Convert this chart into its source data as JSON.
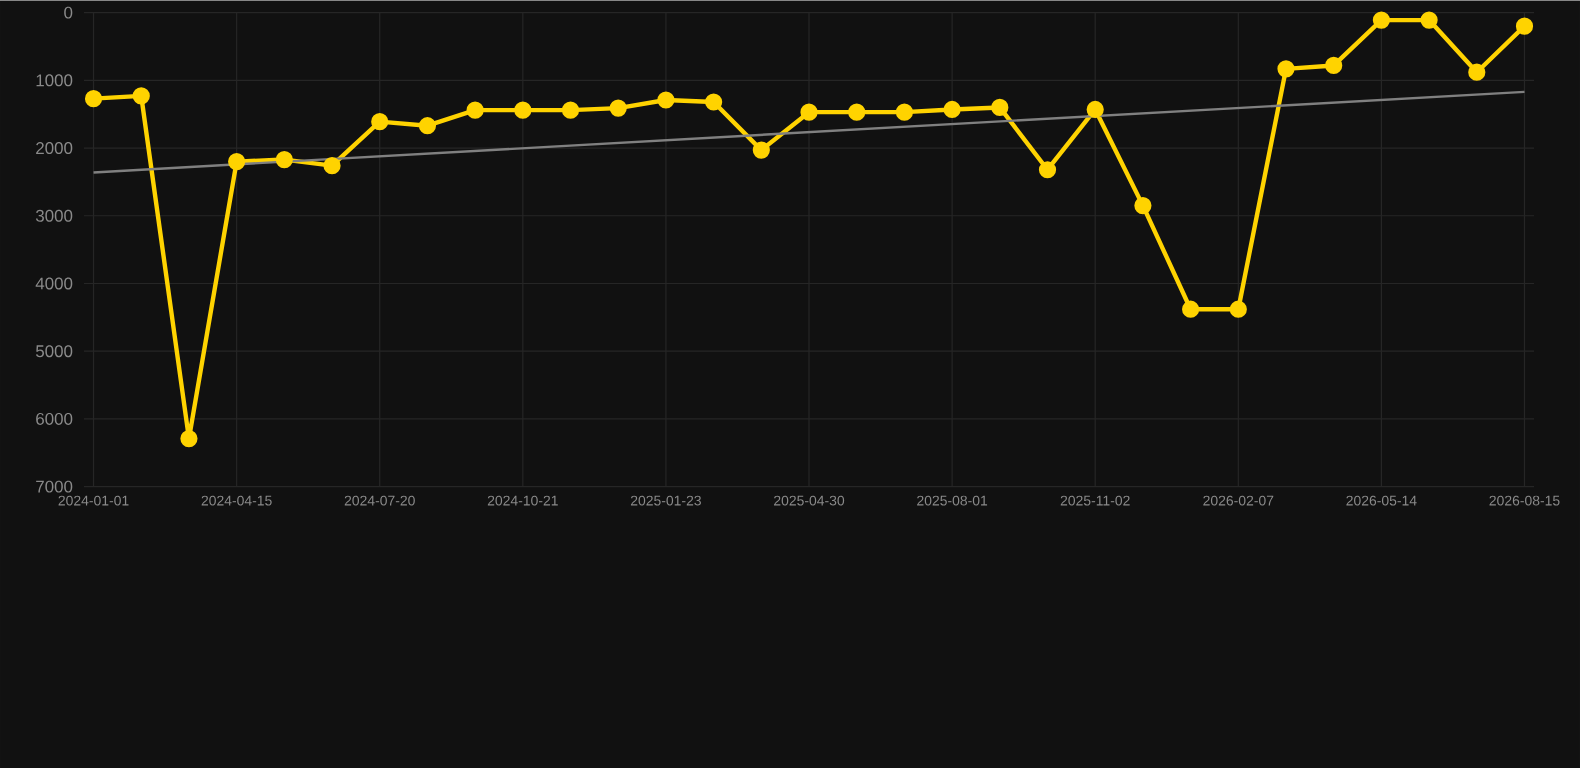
{
  "chart_data": {
    "type": "line",
    "categories": [
      "2024-01-01",
      null,
      null,
      "2024-04-15",
      null,
      null,
      "2024-07-20",
      null,
      null,
      "2024-10-21",
      null,
      null,
      "2025-01-23",
      null,
      null,
      "2025-04-30",
      null,
      null,
      "2025-08-01",
      null,
      null,
      "2025-11-02",
      null,
      null,
      "2026-02-07",
      null,
      null,
      "2026-05-14",
      null,
      null,
      "2026-08-15"
    ],
    "series": [
      {
        "color": "#ffd300",
        "marker": "circle",
        "values": [
          1270,
          1230,
          6290,
          2200,
          2170,
          2260,
          1610,
          1670,
          1440,
          1440,
          1440,
          1410,
          1290,
          1320,
          2030,
          1470,
          1470,
          1470,
          1430,
          1400,
          2320,
          1430,
          2850,
          4380,
          4380,
          830,
          780,
          110,
          110,
          880,
          200
        ]
      },
      {
        "type": "line",
        "color": "#808080",
        "marker": "none",
        "values": [
          2360,
          null,
          null,
          null,
          null,
          null,
          null,
          null,
          null,
          null,
          null,
          null,
          null,
          null,
          null,
          null,
          null,
          null,
          null,
          null,
          null,
          null,
          null,
          null,
          null,
          null,
          null,
          null,
          null,
          null,
          1170
        ]
      }
    ],
    "ylim": [
      7000,
      0
    ],
    "yticks": [
      0,
      1000,
      2000,
      3000,
      4000,
      5000,
      6000,
      7000
    ],
    "grid": true
  }
}
